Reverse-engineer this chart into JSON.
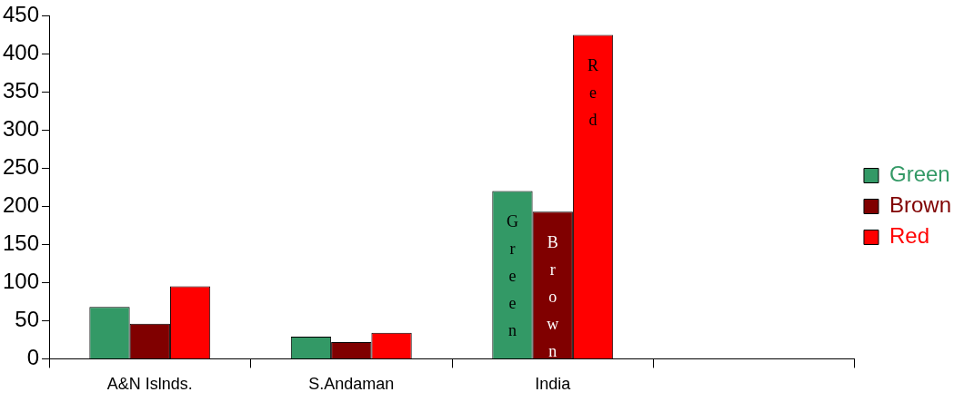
{
  "chart_data": {
    "type": "bar",
    "categories": [
      "A&N Islnds.",
      "S.Andaman",
      "India",
      null
    ],
    "series": [
      {
        "name": "Green",
        "color": "#339966",
        "values": [
          68,
          29,
          220,
          null
        ]
      },
      {
        "name": "Brown",
        "color": "#800000",
        "values": [
          46,
          22,
          193,
          null
        ]
      },
      {
        "name": "Red",
        "color": "#ff0000",
        "values": [
          95,
          34,
          425,
          null
        ]
      }
    ],
    "ylim": [
      0,
      450
    ],
    "yticks": [
      0,
      50,
      100,
      150,
      200,
      250,
      300,
      350,
      400,
      450
    ],
    "grid": false,
    "legend": "right",
    "annotations": [
      "Green",
      "Brown",
      "Red"
    ]
  }
}
